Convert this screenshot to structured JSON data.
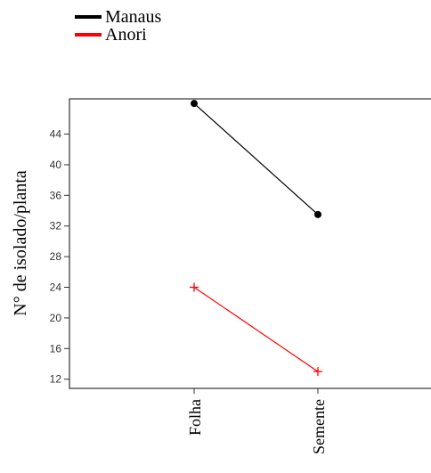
{
  "chart_data": {
    "type": "line",
    "categories": [
      "Folha",
      "Semente"
    ],
    "series": [
      {
        "name": "Manaus",
        "color": "#000000",
        "marker": "circle",
        "values": [
          48,
          33.5
        ]
      },
      {
        "name": "Anori",
        "color": "#ff0000",
        "marker": "plus",
        "values": [
          24,
          13
        ]
      }
    ],
    "title": "",
    "xlabel": "",
    "ylabel": "N° de isolado/planta",
    "yticks": [
      12,
      16,
      20,
      24,
      28,
      32,
      36,
      40,
      44
    ],
    "ylim": [
      10.8,
      48.6
    ],
    "grid": false,
    "legend_position": "top-left"
  }
}
